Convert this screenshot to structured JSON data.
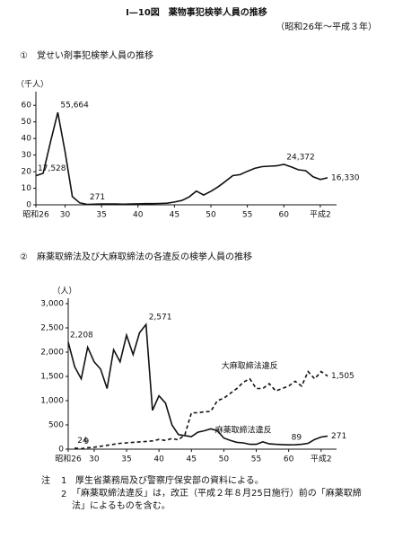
{
  "header": {
    "title": "Ⅰ—10図　薬物事犯検挙人員の推移",
    "subtitle": "（昭和26年〜平成３年）"
  },
  "chart_data": [
    {
      "type": "line",
      "title": "①　覚せい剤事犯検挙人員の推移",
      "y_label": "（千人）",
      "categories": [
        "昭和26",
        null,
        null,
        null,
        "30",
        null,
        null,
        null,
        null,
        "35",
        null,
        null,
        null,
        null,
        "40",
        null,
        null,
        null,
        null,
        "45",
        null,
        null,
        null,
        null,
        "50",
        null,
        null,
        null,
        null,
        "55",
        null,
        null,
        null,
        null,
        "60",
        null,
        null,
        null,
        null,
        "平成2",
        null
      ],
      "series": [
        {
          "color": "#111",
          "style": "solid",
          "values": [
            17.528,
            19,
            38,
            55.664,
            32,
            5,
            1.2,
            0.271,
            0.4,
            0.5,
            0.5,
            0.5,
            0.4,
            0.5,
            0.6,
            0.7,
            0.7,
            0.8,
            1,
            1.7,
            2.6,
            4.7,
            8.3,
            5.9,
            8.2,
            10.9,
            14.2,
            17.6,
            18.2,
            20.2,
            22,
            23,
            23.3,
            23.5,
            24.372,
            22.9,
            21.1,
            20.6,
            16.9,
            15.3,
            16.33
          ],
          "value_labels": [
            "17,528",
            null,
            null,
            "55,664",
            null,
            null,
            null,
            "271",
            null,
            null,
            null,
            null,
            null,
            null,
            null,
            null,
            null,
            null,
            null,
            null,
            null,
            null,
            null,
            null,
            null,
            null,
            null,
            null,
            null,
            null,
            null,
            null,
            null,
            null,
            "24,372",
            null,
            null,
            null,
            null,
            null,
            "16,330"
          ]
        }
      ],
      "ylim": [
        0,
        65
      ],
      "yticks": [
        0,
        10,
        20,
        30,
        40,
        50,
        60
      ]
    },
    {
      "type": "line",
      "title": "②　麻薬取締法及び大麻取締法の各違反の検挙人員の推移",
      "y_label": "（人）",
      "categories": [
        "昭和26",
        null,
        null,
        null,
        "30",
        null,
        null,
        null,
        null,
        "35",
        null,
        null,
        null,
        null,
        "40",
        null,
        null,
        null,
        null,
        "45",
        null,
        null,
        null,
        null,
        "50",
        null,
        null,
        null,
        null,
        "55",
        null,
        null,
        null,
        null,
        "60",
        null,
        null,
        null,
        null,
        "平成2",
        null
      ],
      "series": [
        {
          "name": "麻薬取締法違反",
          "color": "#111",
          "style": "solid",
          "values": [
            2208,
            1700,
            1450,
            2100,
            1800,
            1650,
            1250,
            2050,
            1800,
            2350,
            1950,
            2400,
            2571,
            800,
            1100,
            950,
            500,
            300,
            280,
            260,
            350,
            380,
            420,
            380,
            230,
            180,
            140,
            130,
            100,
            100,
            150,
            110,
            100,
            95,
            89,
            90,
            100,
            120,
            200,
            250,
            271
          ],
          "value_labels": [
            "2,208",
            null,
            null,
            null,
            null,
            null,
            null,
            null,
            null,
            null,
            null,
            null,
            "2,571",
            null,
            null,
            null,
            null,
            null,
            null,
            null,
            null,
            null,
            null,
            null,
            null,
            null,
            null,
            null,
            null,
            null,
            null,
            null,
            null,
            null,
            "89",
            null,
            null,
            null,
            null,
            null,
            "271"
          ]
        },
        {
          "name": "大麻取締法違反",
          "color": "#111",
          "style": "dashed",
          "values": [
            null,
            24,
            9,
            30,
            40,
            60,
            80,
            100,
            120,
            130,
            140,
            150,
            160,
            170,
            200,
            180,
            220,
            190,
            300,
            750,
            750,
            770,
            780,
            1000,
            1050,
            1150,
            1250,
            1380,
            1450,
            1250,
            1250,
            1350,
            1200,
            1250,
            1300,
            1400,
            1300,
            1600,
            1450,
            1600,
            1505
          ],
          "value_labels": [
            null,
            "24",
            "9",
            null,
            null,
            null,
            null,
            null,
            null,
            null,
            null,
            null,
            null,
            null,
            null,
            null,
            null,
            null,
            null,
            null,
            null,
            null,
            null,
            null,
            null,
            null,
            null,
            null,
            null,
            null,
            null,
            null,
            null,
            null,
            null,
            null,
            null,
            null,
            null,
            null,
            "1,505"
          ]
        }
      ],
      "ylim": [
        0,
        3000
      ],
      "yticks": [
        {
          "value": 3000,
          "label": "3,000"
        },
        {
          "value": 2500,
          "label": "2,500"
        },
        {
          "value": 2000,
          "label": "2,000"
        },
        {
          "value": 1500,
          "label": "1,500"
        },
        {
          "value": 1000,
          "label": "1,000"
        },
        500,
        0
      ]
    }
  ],
  "notes": {
    "label": "注",
    "items": [
      {
        "number": "1",
        "text": "厚生省薬務局及び警察庁保安部の資料による。"
      },
      {
        "number": "2",
        "text": "「麻薬取締法違反」は，改正（平成２年８月25日施行）前の「麻薬取締法」によるものを含む。"
      }
    ]
  }
}
